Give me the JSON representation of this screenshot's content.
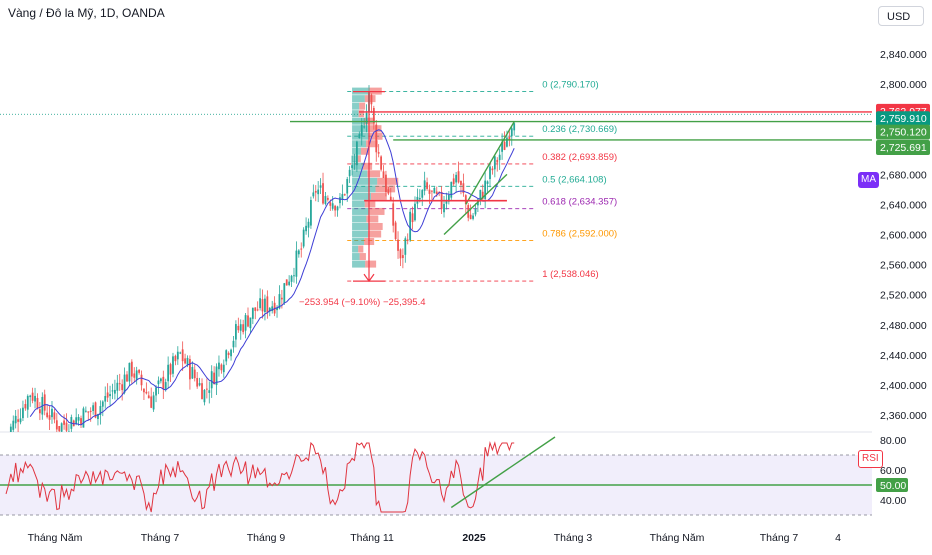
{
  "header": {
    "title": "Vàng / Đô la Mỹ, 1D, OANDA",
    "currency": "USD"
  },
  "colors": {
    "up": "#26a69a",
    "down": "#ef5350",
    "ma": "#3f3fd6",
    "rsi": "#e0343f",
    "green_line": "#43a047",
    "red_line": "#f23645",
    "purple": "#9c27b0",
    "orange": "#ff9800",
    "label_green": "#22ab94",
    "label_red": "#f23645",
    "label_purple": "#7b2ff7"
  },
  "indicator_tags": {
    "ma": "MA",
    "rsi": "RSI"
  },
  "chart_data": [
    {
      "type": "candlestick",
      "title": "Vàng / Đô la Mỹ, 1D, OANDA",
      "y_axis_ticks": [
        2840,
        2800,
        2760,
        2720,
        2680,
        2640,
        2600,
        2560,
        2520,
        2480,
        2440,
        2400,
        2360
      ],
      "y_axis_tick_labels": [
        "2,840.000",
        "2,800.000",
        "2,760.000",
        "2,720.000",
        "2,680.000",
        "2,640.000",
        "2,600.000",
        "2,560.000",
        "2,520.000",
        "2,480.000",
        "2,440.000",
        "2,400.000",
        "2,360.000"
      ],
      "ylim": [
        2340,
        2870
      ],
      "x_axis_labels": [
        "Tháng Năm",
        "Tháng 7",
        "Tháng 9",
        "Tháng 11",
        "2025",
        "Tháng 3",
        "Tháng Năm",
        "Tháng 7",
        "4"
      ],
      "price_labels": [
        {
          "value": 2762.977,
          "text": "2,762.977",
          "color": "#f23645"
        },
        {
          "value": 2759.91,
          "text": "2,759.910",
          "color": "#089981"
        },
        {
          "value": 2750.12,
          "text": "2,750.120",
          "color": "#43a047"
        },
        {
          "value": 2725.691,
          "text": "2,725.691",
          "color": "#43a047"
        }
      ],
      "fibonacci": [
        {
          "level": "0",
          "value": 2790.17,
          "text": "0 (2,790.170)",
          "color": "#22ab94"
        },
        {
          "level": "0.236",
          "value": 2730.669,
          "text": "0.236 (2,730.669)",
          "color": "#22ab94"
        },
        {
          "level": "0.382",
          "value": 2693.859,
          "text": "0.382 (2,693.859)",
          "color": "#f23645"
        },
        {
          "level": "0.5",
          "value": 2664.108,
          "text": "0.5 (2,664.108)",
          "color": "#22ab94"
        },
        {
          "level": "0.618",
          "value": 2634.357,
          "text": "0.618 (2,634.357)",
          "color": "#9c27b0"
        },
        {
          "level": "0.786",
          "value": 2592.0,
          "text": "0.786 (2,592.000)",
          "color": "#ff9800"
        },
        {
          "level": "1",
          "value": 2538.046,
          "text": "1 (2,538.046)",
          "color": "#f23645"
        }
      ],
      "measure_annotation": "−253.954 (−9.10%) −25,395.4",
      "series": [
        {
          "name": "MA"
        }
      ],
      "grid": false
    },
    {
      "type": "line",
      "series": [
        {
          "name": "RSI"
        }
      ],
      "y_axis_ticks": [
        80,
        60,
        40
      ],
      "y_axis_tick_labels": [
        "80.00",
        "60.00",
        "40.00"
      ],
      "ylim": [
        30,
        87
      ],
      "reference_lines": [
        70,
        50,
        30
      ],
      "current_label": "50.00"
    }
  ]
}
